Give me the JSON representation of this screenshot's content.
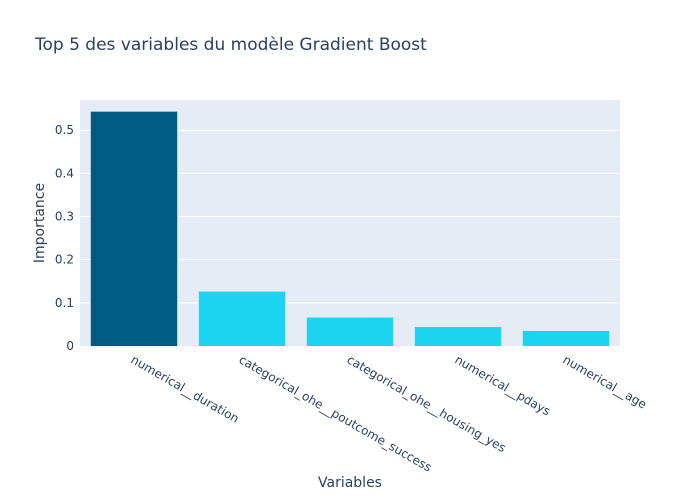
{
  "chart_data": {
    "type": "bar",
    "title": "Top 5 des variables du modèle Gradient Boost",
    "xlabel": "Variables",
    "ylabel": "Importance",
    "categories": [
      "numerical__duration",
      "categorical_ohe__poutcome_success",
      "categorical_ohe__housing_yes",
      "numerical__pdays",
      "numerical__age"
    ],
    "values": [
      0.543,
      0.126,
      0.066,
      0.044,
      0.035
    ],
    "highlight_color": "#005a82",
    "bar_color": "#1cd4f0",
    "ylim": [
      0,
      0.57
    ],
    "yticks": [
      "0",
      "0.1",
      "0.2",
      "0.3",
      "0.4",
      "0.5"
    ],
    "ytick_values": [
      0,
      0.1,
      0.2,
      0.3,
      0.4,
      0.5
    ],
    "plot_background": "#e5ecf6",
    "grid": true
  }
}
